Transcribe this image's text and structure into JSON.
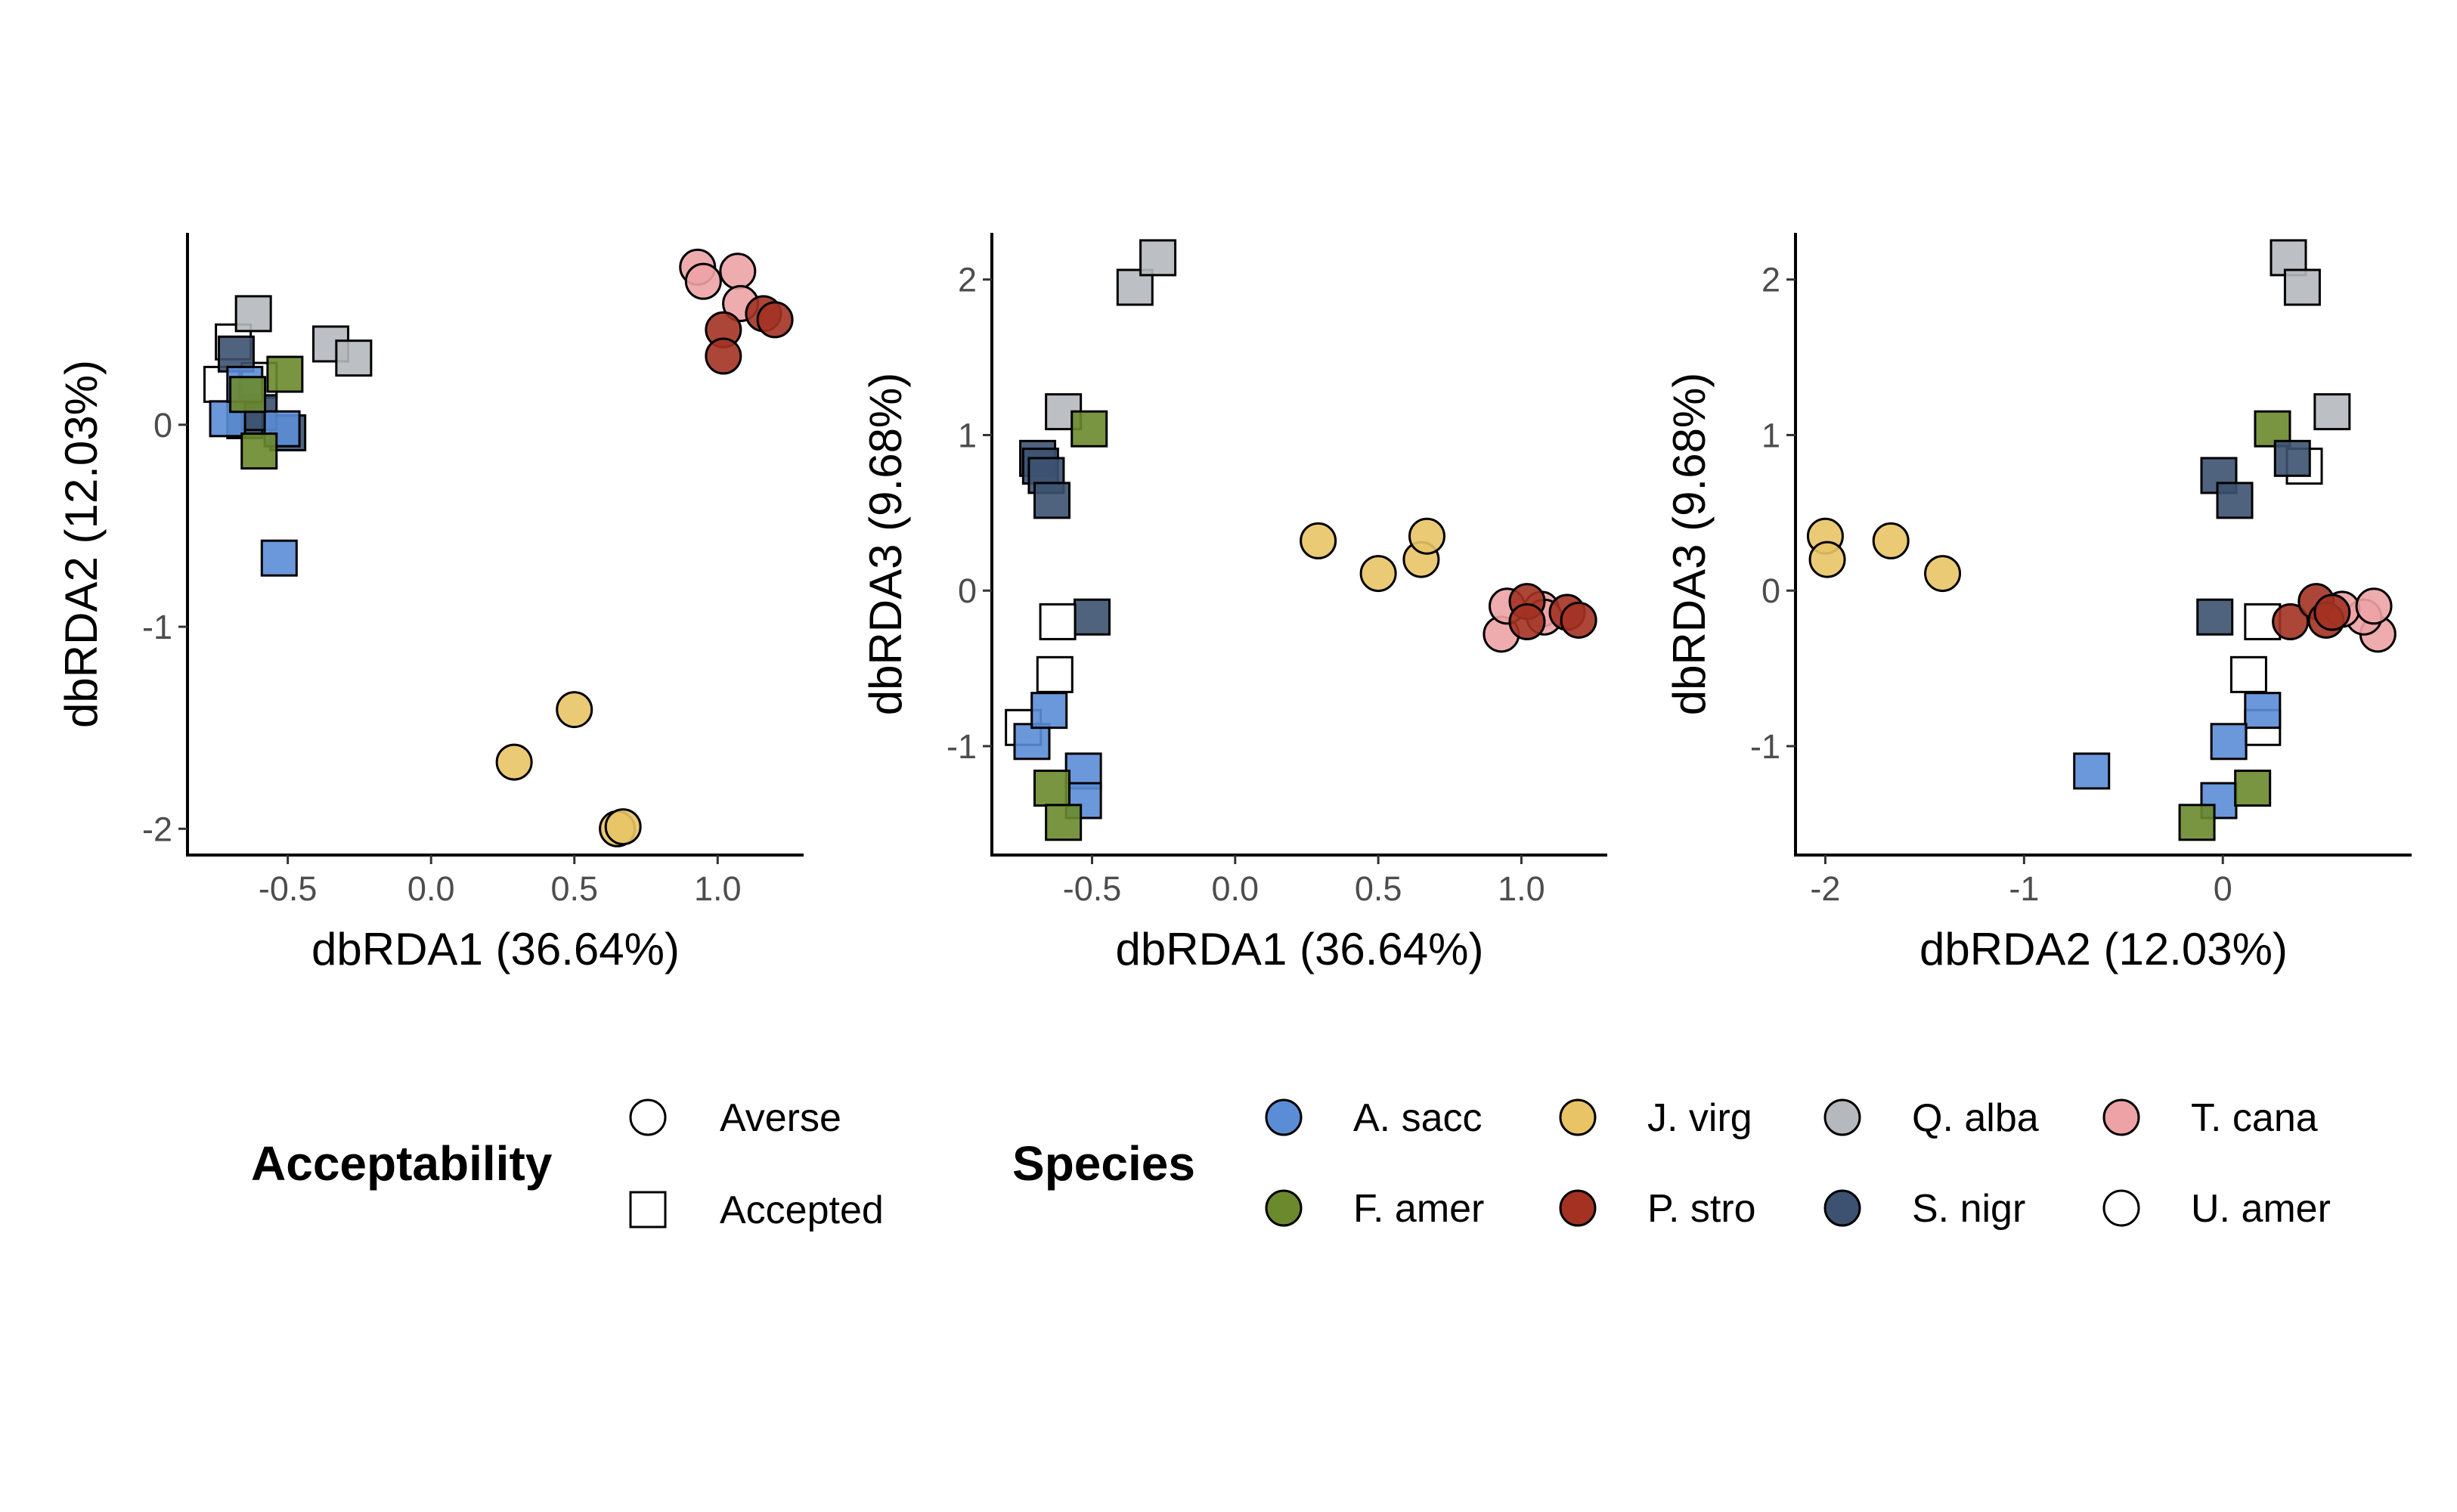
{
  "chart_data": [
    {
      "type": "scatter",
      "xlabel": "dbRDA1 (36.64%)",
      "ylabel": "dbRDA2 (12.03%)",
      "xlim": [
        -0.85,
        1.3
      ],
      "ylim": [
        -2.13,
        0.95
      ],
      "xticks": [
        -0.5,
        0.0,
        0.5,
        1.0
      ],
      "xtick_labels": [
        "-0.5",
        "0.0",
        "0.5",
        "1.0"
      ],
      "yticks": [
        -2,
        -1,
        0
      ],
      "ytick_labels": [
        "-2",
        "-1",
        "0"
      ],
      "points": [
        {
          "x": -0.73,
          "y": 0.2,
          "species": "U. amer",
          "shape": "Accepted"
        },
        {
          "x": -0.69,
          "y": 0.41,
          "species": "U. amer",
          "shape": "Accepted"
        },
        {
          "x": -0.6,
          "y": 0.22,
          "species": "U. amer",
          "shape": "Accepted"
        },
        {
          "x": -0.62,
          "y": 0.55,
          "species": "Q. alba",
          "shape": "Accepted"
        },
        {
          "x": -0.35,
          "y": 0.4,
          "species": "Q. alba",
          "shape": "Accepted"
        },
        {
          "x": -0.27,
          "y": 0.33,
          "species": "Q. alba",
          "shape": "Accepted"
        },
        {
          "x": -0.68,
          "y": 0.35,
          "species": "S. nigr",
          "shape": "Accepted"
        },
        {
          "x": -0.65,
          "y": 0.02,
          "species": "S. nigr",
          "shape": "Accepted"
        },
        {
          "x": -0.5,
          "y": -0.04,
          "species": "S. nigr",
          "shape": "Accepted"
        },
        {
          "x": -0.6,
          "y": 0.06,
          "species": "S. nigr",
          "shape": "Accepted"
        },
        {
          "x": -0.71,
          "y": 0.03,
          "species": "A. sacc",
          "shape": "Accepted"
        },
        {
          "x": -0.65,
          "y": 0.2,
          "species": "A. sacc",
          "shape": "Accepted"
        },
        {
          "x": -0.52,
          "y": -0.02,
          "species": "A. sacc",
          "shape": "Accepted"
        },
        {
          "x": -0.53,
          "y": -0.66,
          "species": "A. sacc",
          "shape": "Accepted"
        },
        {
          "x": -0.51,
          "y": 0.25,
          "species": "F. amer",
          "shape": "Accepted"
        },
        {
          "x": -0.64,
          "y": 0.15,
          "species": "F. amer",
          "shape": "Accepted"
        },
        {
          "x": -0.6,
          "y": -0.13,
          "species": "F. amer",
          "shape": "Accepted"
        },
        {
          "x": 0.29,
          "y": -1.67,
          "species": "J. virg",
          "shape": "Averse"
        },
        {
          "x": 0.5,
          "y": -1.41,
          "species": "J. virg",
          "shape": "Averse"
        },
        {
          "x": 0.65,
          "y": -2.0,
          "species": "J. virg",
          "shape": "Averse"
        },
        {
          "x": 0.67,
          "y": -1.99,
          "species": "J. virg",
          "shape": "Averse"
        },
        {
          "x": 0.93,
          "y": 0.78,
          "species": "T. cana",
          "shape": "Averse"
        },
        {
          "x": 0.95,
          "y": 0.71,
          "species": "T. cana",
          "shape": "Averse"
        },
        {
          "x": 1.07,
          "y": 0.76,
          "species": "T. cana",
          "shape": "Averse"
        },
        {
          "x": 1.08,
          "y": 0.6,
          "species": "T. cana",
          "shape": "Averse"
        },
        {
          "x": 1.02,
          "y": 0.47,
          "species": "P. stro",
          "shape": "Averse"
        },
        {
          "x": 1.02,
          "y": 0.34,
          "species": "P. stro",
          "shape": "Averse"
        },
        {
          "x": 1.16,
          "y": 0.55,
          "species": "P. stro",
          "shape": "Averse"
        },
        {
          "x": 1.2,
          "y": 0.52,
          "species": "P. stro",
          "shape": "Averse"
        }
      ]
    },
    {
      "type": "scatter",
      "xlabel": "dbRDA1 (36.64%)",
      "ylabel": "dbRDA3 (9.68%)",
      "xlim": [
        -0.85,
        1.3
      ],
      "ylim": [
        -1.7,
        2.3
      ],
      "xticks": [
        -0.5,
        0.0,
        0.5,
        1.0
      ],
      "xtick_labels": [
        "-0.5",
        "0.0",
        "0.5",
        "1.0"
      ],
      "yticks": [
        -1,
        0,
        1,
        2
      ],
      "ytick_labels": [
        "-1",
        "0",
        "1",
        "2"
      ],
      "points": [
        {
          "x": -0.35,
          "y": 1.95,
          "species": "Q. alba",
          "shape": "Accepted"
        },
        {
          "x": -0.27,
          "y": 2.14,
          "species": "Q. alba",
          "shape": "Accepted"
        },
        {
          "x": -0.6,
          "y": 1.15,
          "species": "Q. alba",
          "shape": "Accepted"
        },
        {
          "x": -0.51,
          "y": 1.04,
          "species": "F. amer",
          "shape": "Accepted"
        },
        {
          "x": -0.69,
          "y": 0.85,
          "species": "S. nigr",
          "shape": "Accepted"
        },
        {
          "x": -0.68,
          "y": 0.8,
          "species": "S. nigr",
          "shape": "Accepted"
        },
        {
          "x": -0.66,
          "y": 0.74,
          "species": "S. nigr",
          "shape": "Accepted"
        },
        {
          "x": -0.64,
          "y": 0.58,
          "species": "S. nigr",
          "shape": "Accepted"
        },
        {
          "x": -0.5,
          "y": -0.17,
          "species": "S. nigr",
          "shape": "Accepted"
        },
        {
          "x": -0.62,
          "y": -0.2,
          "species": "U. amer",
          "shape": "Accepted"
        },
        {
          "x": -0.63,
          "y": -0.54,
          "species": "U. amer",
          "shape": "Accepted"
        },
        {
          "x": -0.74,
          "y": -0.88,
          "species": "U. amer",
          "shape": "Accepted"
        },
        {
          "x": -0.71,
          "y": -0.97,
          "species": "A. sacc",
          "shape": "Accepted"
        },
        {
          "x": -0.65,
          "y": -0.77,
          "species": "A. sacc",
          "shape": "Accepted"
        },
        {
          "x": -0.53,
          "y": -1.16,
          "species": "A. sacc",
          "shape": "Accepted"
        },
        {
          "x": -0.53,
          "y": -1.35,
          "species": "A. sacc",
          "shape": "Accepted"
        },
        {
          "x": -0.64,
          "y": -1.27,
          "species": "F. amer",
          "shape": "Accepted"
        },
        {
          "x": -0.6,
          "y": -1.49,
          "species": "F. amer",
          "shape": "Accepted"
        },
        {
          "x": 0.29,
          "y": 0.32,
          "species": "J. virg",
          "shape": "Averse"
        },
        {
          "x": 0.5,
          "y": 0.11,
          "species": "J. virg",
          "shape": "Averse"
        },
        {
          "x": 0.65,
          "y": 0.2,
          "species": "J. virg",
          "shape": "Averse"
        },
        {
          "x": 0.67,
          "y": 0.35,
          "species": "J. virg",
          "shape": "Averse"
        },
        {
          "x": 0.93,
          "y": -0.28,
          "species": "T. cana",
          "shape": "Averse"
        },
        {
          "x": 0.95,
          "y": -0.1,
          "species": "T. cana",
          "shape": "Averse"
        },
        {
          "x": 1.07,
          "y": -0.12,
          "species": "T. cana",
          "shape": "Averse"
        },
        {
          "x": 1.08,
          "y": -0.17,
          "species": "T. cana",
          "shape": "Averse"
        },
        {
          "x": 1.02,
          "y": -0.07,
          "species": "P. stro",
          "shape": "Averse"
        },
        {
          "x": 1.02,
          "y": -0.2,
          "species": "P. stro",
          "shape": "Averse"
        },
        {
          "x": 1.16,
          "y": -0.14,
          "species": "P. stro",
          "shape": "Averse"
        },
        {
          "x": 1.2,
          "y": -0.19,
          "species": "P. stro",
          "shape": "Averse"
        }
      ]
    },
    {
      "type": "scatter",
      "xlabel": "dbRDA2 (12.03%)",
      "ylabel": "dbRDA3 (9.68%)",
      "xlim": [
        -2.15,
        0.95
      ],
      "ylim": [
        -1.7,
        2.3
      ],
      "xticks": [
        -2,
        -1,
        0
      ],
      "xtick_labels": [
        "-2",
        "-1",
        "0"
      ],
      "yticks": [
        -1,
        0,
        1,
        2
      ],
      "ytick_labels": [
        "-1",
        "0",
        "1",
        "2"
      ],
      "points": [
        {
          "x": 0.33,
          "y": 2.14,
          "species": "Q. alba",
          "shape": "Accepted"
        },
        {
          "x": 0.4,
          "y": 1.95,
          "species": "Q. alba",
          "shape": "Accepted"
        },
        {
          "x": 0.55,
          "y": 1.15,
          "species": "Q. alba",
          "shape": "Accepted"
        },
        {
          "x": 0.25,
          "y": 1.04,
          "species": "F. amer",
          "shape": "Accepted"
        },
        {
          "x": 0.41,
          "y": 0.8,
          "species": "U. amer",
          "shape": "Accepted"
        },
        {
          "x": 0.35,
          "y": 0.85,
          "species": "S. nigr",
          "shape": "Accepted"
        },
        {
          "x": -0.02,
          "y": 0.74,
          "species": "S. nigr",
          "shape": "Accepted"
        },
        {
          "x": 0.06,
          "y": 0.58,
          "species": "S. nigr",
          "shape": "Accepted"
        },
        {
          "x": -0.04,
          "y": -0.17,
          "species": "S. nigr",
          "shape": "Accepted"
        },
        {
          "x": 0.2,
          "y": -0.2,
          "species": "U. amer",
          "shape": "Accepted"
        },
        {
          "x": 0.13,
          "y": -0.54,
          "species": "U. amer",
          "shape": "Accepted"
        },
        {
          "x": 0.2,
          "y": -0.88,
          "species": "U. amer",
          "shape": "Accepted"
        },
        {
          "x": 0.2,
          "y": -0.77,
          "species": "A. sacc",
          "shape": "Accepted"
        },
        {
          "x": 0.03,
          "y": -0.97,
          "species": "A. sacc",
          "shape": "Accepted"
        },
        {
          "x": -0.66,
          "y": -1.16,
          "species": "A. sacc",
          "shape": "Accepted"
        },
        {
          "x": -0.02,
          "y": -1.35,
          "species": "A. sacc",
          "shape": "Accepted"
        },
        {
          "x": 0.15,
          "y": -1.27,
          "species": "F. amer",
          "shape": "Accepted"
        },
        {
          "x": -0.13,
          "y": -1.49,
          "species": "F. amer",
          "shape": "Accepted"
        },
        {
          "x": -2.0,
          "y": 0.35,
          "species": "J. virg",
          "shape": "Averse"
        },
        {
          "x": -1.99,
          "y": 0.2,
          "species": "J. virg",
          "shape": "Averse"
        },
        {
          "x": -1.67,
          "y": 0.32,
          "species": "J. virg",
          "shape": "Averse"
        },
        {
          "x": -1.41,
          "y": 0.11,
          "species": "J. virg",
          "shape": "Averse"
        },
        {
          "x": 0.78,
          "y": -0.28,
          "species": "T. cana",
          "shape": "Averse"
        },
        {
          "x": 0.71,
          "y": -0.17,
          "species": "T. cana",
          "shape": "Averse"
        },
        {
          "x": 0.6,
          "y": -0.12,
          "species": "T. cana",
          "shape": "Averse"
        },
        {
          "x": 0.76,
          "y": -0.1,
          "species": "T. cana",
          "shape": "Averse"
        },
        {
          "x": 0.34,
          "y": -0.2,
          "species": "P. stro",
          "shape": "Averse"
        },
        {
          "x": 0.47,
          "y": -0.07,
          "species": "P. stro",
          "shape": "Averse"
        },
        {
          "x": 0.52,
          "y": -0.19,
          "species": "P. stro",
          "shape": "Averse"
        },
        {
          "x": 0.55,
          "y": -0.14,
          "species": "P. stro",
          "shape": "Averse"
        }
      ]
    }
  ],
  "legend": {
    "acceptability": {
      "title": "Acceptability",
      "items": [
        {
          "label": "Averse",
          "shape": "circle"
        },
        {
          "label": "Accepted",
          "shape": "square"
        }
      ]
    },
    "species": {
      "title": "Species",
      "items": [
        {
          "label": "A. sacc",
          "color": "#5b8dd6"
        },
        {
          "label": "J. virg",
          "color": "#e8c466"
        },
        {
          "label": "Q. alba",
          "color": "#b5b8bd"
        },
        {
          "label": "T. cana",
          "color": "#eda3a6"
        },
        {
          "label": "F. amer",
          "color": "#6b8a2e"
        },
        {
          "label": "P. stro",
          "color": "#a33223"
        },
        {
          "label": "S. nigr",
          "color": "#3c5270"
        },
        {
          "label": "U. amer",
          "color": "#ffffff"
        }
      ]
    }
  }
}
